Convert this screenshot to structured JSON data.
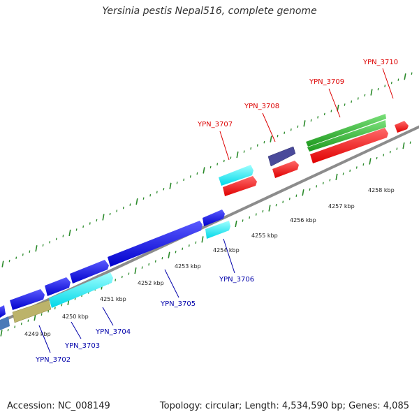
{
  "title": "Yersinia pestis Nepal516, complete genome",
  "footer": {
    "accession": "Accession: NC_008149",
    "topology": "Topology: circular; Length: 4,534,590 bp; Genes: 4,085"
  },
  "colors": {
    "backbone": "#8c8c8c",
    "tick": "#2a8a2a",
    "upper_label": "#dd0000",
    "lower_label": "#0000aa",
    "scale_text": "#222222"
  },
  "scale_labels": [
    "4249 kbp",
    "4250 kbp",
    "4251 kbp",
    "4252 kbp",
    "4253 kbp",
    "4254 kbp",
    "4255 kbp",
    "4256 kbp",
    "4257 kbp",
    "4258 kbp"
  ],
  "genes_upper": [
    {
      "label": "YPN_3707"
    },
    {
      "label": "YPN_3708"
    },
    {
      "label": "YPN_3709"
    },
    {
      "label": "YPN_3710"
    }
  ],
  "genes_lower": [
    {
      "label": "YPN_3702"
    },
    {
      "label": "YPN_3703"
    },
    {
      "label": "YPN_3704"
    },
    {
      "label": "YPN_3705"
    },
    {
      "label": "YPN_3706"
    }
  ]
}
